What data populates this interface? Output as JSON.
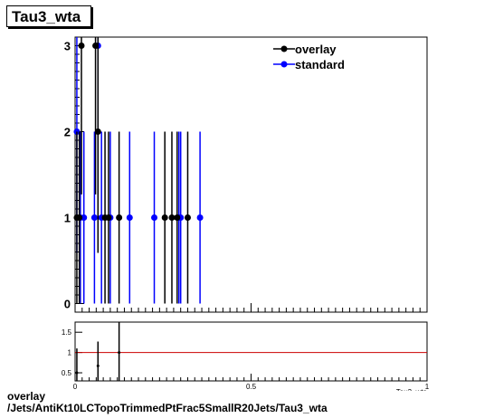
{
  "title": "Tau3_wta",
  "caption": {
    "line1": "overlay",
    "line2": "/Jets/AntiKt10LCTopoTrimmedPtFrac5SmallR20Jets/Tau3_wta"
  },
  "chart_data": [
    {
      "type": "scatter",
      "panel": "main",
      "xlim": [
        0,
        1
      ],
      "ylim": [
        -0.1,
        3.1
      ],
      "y_ticks": [
        0,
        1,
        2,
        3
      ],
      "x_tick_labels_shown": false,
      "xlabel": "Tau3_wta",
      "legend": {
        "placement": "top-right",
        "entries": [
          {
            "name": "overlay",
            "color": "#000000"
          },
          {
            "name": "standard",
            "color": "#0000ff"
          }
        ]
      },
      "series": [
        {
          "name": "overlay",
          "color": "#000000",
          "points": [
            {
              "x": 0.005,
              "y": 1,
              "err": 1
            },
            {
              "x": 0.012,
              "y": 1,
              "err": 1
            },
            {
              "x": 0.018,
              "y": 3,
              "err": 1.73
            },
            {
              "x": 0.058,
              "y": 3,
              "err": 1.73
            },
            {
              "x": 0.065,
              "y": 2,
              "err": 1.41
            },
            {
              "x": 0.085,
              "y": 1,
              "err": 1
            },
            {
              "x": 0.095,
              "y": 1,
              "err": 1
            },
            {
              "x": 0.125,
              "y": 1,
              "err": 1
            },
            {
              "x": 0.255,
              "y": 1,
              "err": 1
            },
            {
              "x": 0.275,
              "y": 1,
              "err": 1
            },
            {
              "x": 0.29,
              "y": 1,
              "err": 1
            },
            {
              "x": 0.32,
              "y": 1,
              "err": 1
            }
          ]
        },
        {
          "name": "standard",
          "color": "#0000ff",
          "points": [
            {
              "x": 0.005,
              "y": 2,
              "err": 1.41
            },
            {
              "x": 0.015,
              "y": 1,
              "err": 1
            },
            {
              "x": 0.025,
              "y": 1,
              "err": 1
            },
            {
              "x": 0.055,
              "y": 1,
              "err": 1
            },
            {
              "x": 0.065,
              "y": 3,
              "err": 1.73
            },
            {
              "x": 0.075,
              "y": 1,
              "err": 1
            },
            {
              "x": 0.1,
              "y": 1,
              "err": 1
            },
            {
              "x": 0.155,
              "y": 1,
              "err": 1
            },
            {
              "x": 0.225,
              "y": 1,
              "err": 1
            },
            {
              "x": 0.295,
              "y": 1,
              "err": 1
            },
            {
              "x": 0.3,
              "y": 1,
              "err": 1
            },
            {
              "x": 0.355,
              "y": 1,
              "err": 1
            }
          ]
        }
      ]
    },
    {
      "type": "scatter",
      "panel": "ratio",
      "xlim": [
        0,
        1
      ],
      "ylim": [
        0.3,
        1.75
      ],
      "y_ticks": [
        0.5,
        1,
        1.5
      ],
      "x_ticks": [
        0,
        0.5,
        1
      ],
      "xlabel": "Tau3_wta",
      "reference_line": {
        "y": 1,
        "color": "#cc0000"
      },
      "points": [
        {
          "x": 0.005,
          "y": 0.5,
          "err": 0.6
        },
        {
          "x": 0.065,
          "y": 0.67,
          "err": 0.6
        },
        {
          "x": 0.125,
          "y": 1,
          "err": 1.0
        }
      ]
    }
  ]
}
